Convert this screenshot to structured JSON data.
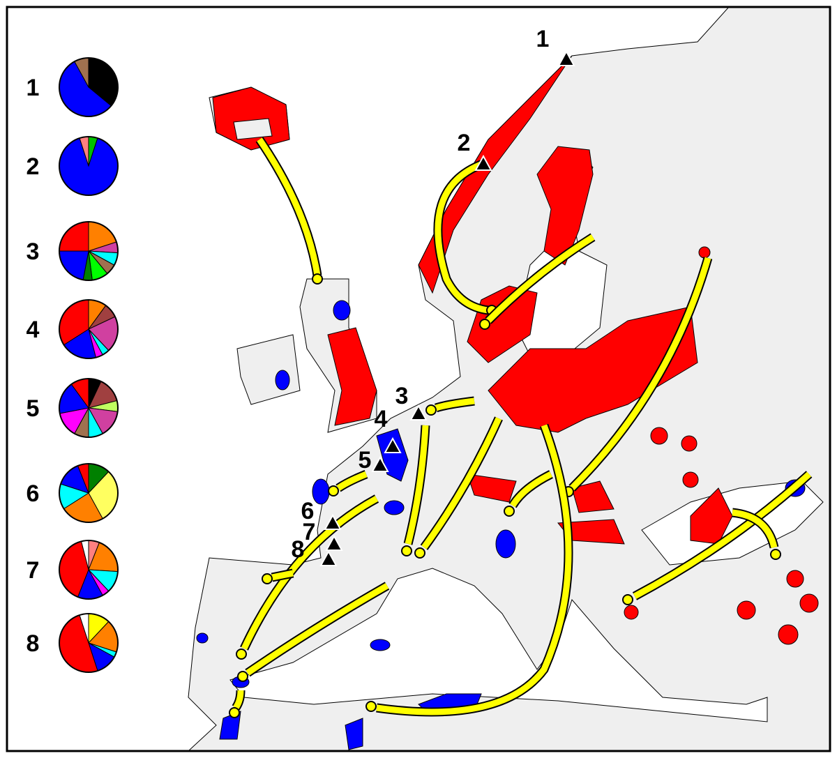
{
  "legend": {
    "pies": [
      {
        "label": "1",
        "slices": [
          {
            "color": "#000000",
            "value": 36
          },
          {
            "color": "#0000ff",
            "value": 56
          },
          {
            "color": "#a0714f",
            "value": 8
          }
        ]
      },
      {
        "label": "2",
        "slices": [
          {
            "color": "#00c000",
            "value": 5
          },
          {
            "color": "#0000ff",
            "value": 90
          },
          {
            "color": "#ff8080",
            "value": 5
          }
        ]
      },
      {
        "label": "3",
        "slices": [
          {
            "color": "#ff8000",
            "value": 20
          },
          {
            "color": "#d040a0",
            "value": 6
          },
          {
            "color": "#00ffff",
            "value": 7
          },
          {
            "color": "#a0714f",
            "value": 6
          },
          {
            "color": "#00ff00",
            "value": 9
          },
          {
            "color": "#008000",
            "value": 5
          },
          {
            "color": "#0000ff",
            "value": 22
          },
          {
            "color": "#ff0000",
            "value": 25
          }
        ]
      },
      {
        "label": "4",
        "slices": [
          {
            "color": "#ff8000",
            "value": 10
          },
          {
            "color": "#a04040",
            "value": 8
          },
          {
            "color": "#d040a0",
            "value": 20
          },
          {
            "color": "#00ffff",
            "value": 4
          },
          {
            "color": "#ff00ff",
            "value": 4
          },
          {
            "color": "#0000ff",
            "value": 20
          },
          {
            "color": "#ff0000",
            "value": 34
          }
        ]
      },
      {
        "label": "5",
        "slices": [
          {
            "color": "#000000",
            "value": 7
          },
          {
            "color": "#a04040",
            "value": 14
          },
          {
            "color": "#c0ff60",
            "value": 6
          },
          {
            "color": "#d040a0",
            "value": 15
          },
          {
            "color": "#00ffff",
            "value": 8
          },
          {
            "color": "#a0714f",
            "value": 8
          },
          {
            "color": "#ff00ff",
            "value": 14
          },
          {
            "color": "#0000ff",
            "value": 18
          },
          {
            "color": "#ff0000",
            "value": 10
          }
        ]
      },
      {
        "label": "6",
        "slices": [
          {
            "color": "#008000",
            "value": 12
          },
          {
            "color": "#ffff60",
            "value": 30
          },
          {
            "color": "#ff8000",
            "value": 24
          },
          {
            "color": "#00ffff",
            "value": 14
          },
          {
            "color": "#0000ff",
            "value": 14
          },
          {
            "color": "#ff0000",
            "value": 6
          }
        ]
      },
      {
        "label": "7",
        "slices": [
          {
            "color": "#ff8080",
            "value": 6
          },
          {
            "color": "#ff8000",
            "value": 20
          },
          {
            "color": "#00ffff",
            "value": 12
          },
          {
            "color": "#ff00ff",
            "value": 4
          },
          {
            "color": "#0000ff",
            "value": 14
          },
          {
            "color": "#ff0000",
            "value": 40
          },
          {
            "color": "#ffffff",
            "value": 4
          }
        ]
      },
      {
        "label": "8",
        "slices": [
          {
            "color": "#ffff00",
            "value": 12
          },
          {
            "color": "#ff8000",
            "value": 18
          },
          {
            "color": "#00ffff",
            "value": 3
          },
          {
            "color": "#0000ff",
            "value": 12
          },
          {
            "color": "#ff0000",
            "value": 50
          },
          {
            "color": "#ffffff",
            "value": 5
          }
        ]
      }
    ]
  },
  "sites": [
    "1",
    "2",
    "3",
    "4",
    "5",
    "6",
    "7",
    "8"
  ]
}
